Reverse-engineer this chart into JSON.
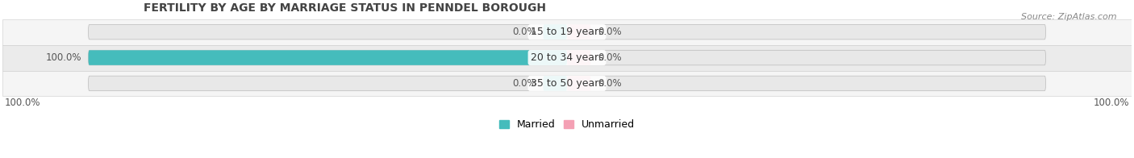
{
  "title": "FERTILITY BY AGE BY MARRIAGE STATUS IN PENNDEL BOROUGH",
  "source": "Source: ZipAtlas.com",
  "categories": [
    "15 to 19 years",
    "20 to 34 years",
    "35 to 50 years"
  ],
  "married_values": [
    0.0,
    100.0,
    0.0
  ],
  "unmarried_values": [
    0.0,
    0.0,
    0.0
  ],
  "married_color": "#45BCBC",
  "unmarried_color": "#F4A0B4",
  "bar_bg_color": "#E8E8E8",
  "title_color": "#444444",
  "label_color": "#555555",
  "legend_married": "Married",
  "legend_unmarried": "Unmarried",
  "figsize": [
    14.06,
    1.96
  ],
  "dpi": 100,
  "bar_height": 0.58,
  "row_colors": [
    "#F5F5F5",
    "#EBEBEB",
    "#F5F5F5"
  ],
  "max_val": 100.0,
  "small_bar_width": 5.0
}
